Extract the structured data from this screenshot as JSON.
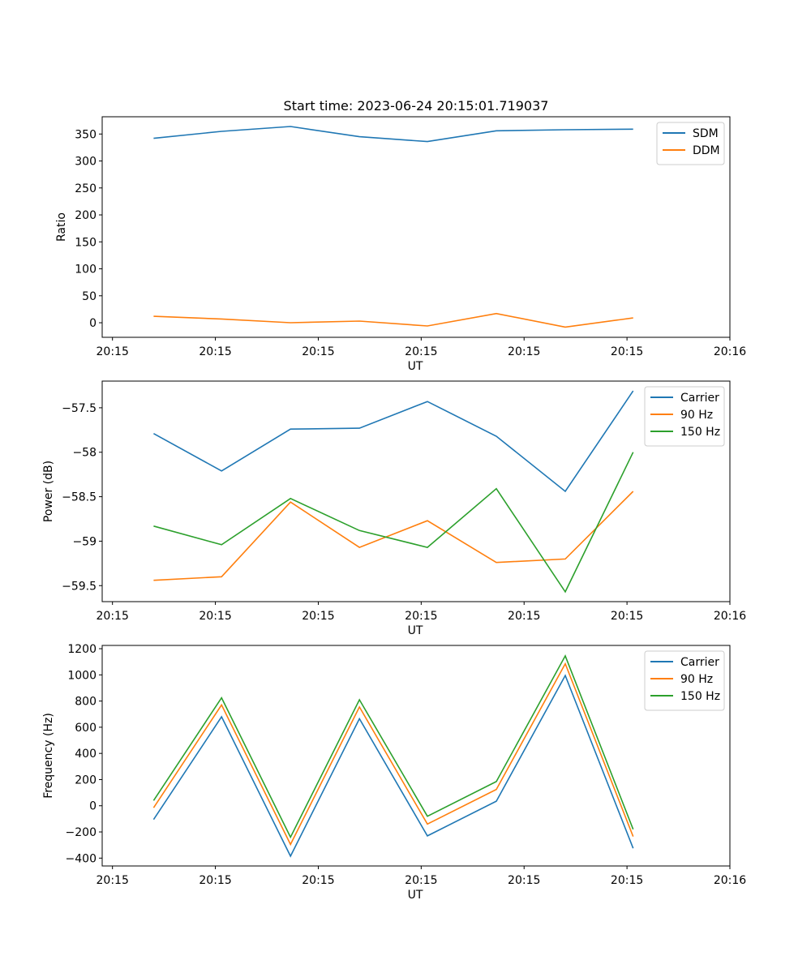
{
  "figure": {
    "title": "Start time: 2023-06-24 20:15:01.719037"
  },
  "chart_data": [
    {
      "type": "line",
      "title": "Start time: 2023-06-24 20:15:01.719037",
      "xlabel": "UT",
      "ylabel": "Ratio",
      "x_ticks": [
        "20:15",
        "20:15",
        "20:15",
        "20:15",
        "20:15",
        "20:15",
        "20:16"
      ],
      "xlim": [
        0,
        6.1
      ],
      "ylim": [
        -27,
        382
      ],
      "y_ticks": [
        0,
        50,
        100,
        150,
        200,
        250,
        300,
        350
      ],
      "x": [
        0.5,
        1.16,
        1.83,
        2.5,
        3.16,
        3.83,
        4.5,
        5.16
      ],
      "legend_position": "upper right",
      "grid": false,
      "series": [
        {
          "name": "SDM",
          "color": "#1f77b4",
          "values": [
            342,
            355,
            364,
            345,
            336,
            356,
            358,
            359
          ]
        },
        {
          "name": "DDM",
          "color": "#ff7f0e",
          "values": [
            12,
            7,
            0,
            3,
            -6,
            17,
            -8,
            9
          ]
        }
      ]
    },
    {
      "type": "line",
      "xlabel": "UT",
      "ylabel": "Power (dB)",
      "x_ticks": [
        "20:15",
        "20:15",
        "20:15",
        "20:15",
        "20:15",
        "20:15",
        "20:16"
      ],
      "xlim": [
        0,
        6.1
      ],
      "ylim": [
        -59.68,
        -57.2
      ],
      "y_ticks": [
        -59.5,
        -59.0,
        -58.5,
        -58.0,
        -57.5
      ],
      "x": [
        0.5,
        1.16,
        1.83,
        2.5,
        3.16,
        3.83,
        4.5,
        5.16
      ],
      "legend_position": "upper right",
      "grid": false,
      "series": [
        {
          "name": "Carrier",
          "color": "#1f77b4",
          "values": [
            -57.79,
            -58.21,
            -57.74,
            -57.73,
            -57.43,
            -57.82,
            -58.44,
            -57.31
          ]
        },
        {
          "name": "90 Hz",
          "color": "#ff7f0e",
          "values": [
            -59.44,
            -59.4,
            -58.56,
            -59.07,
            -58.77,
            -59.24,
            -59.2,
            -58.44
          ]
        },
        {
          "name": "150 Hz",
          "color": "#2ca02c",
          "values": [
            -58.83,
            -59.04,
            -58.52,
            -58.88,
            -59.07,
            -58.41,
            -59.57,
            -58.0
          ]
        }
      ]
    },
    {
      "type": "line",
      "xlabel": "UT",
      "ylabel": "Frequency (Hz)",
      "x_ticks": [
        "20:15",
        "20:15",
        "20:15",
        "20:15",
        "20:15",
        "20:15",
        "20:16"
      ],
      "xlim": [
        0,
        6.1
      ],
      "ylim": [
        -460,
        1225
      ],
      "y_ticks": [
        -400,
        -200,
        0,
        200,
        400,
        600,
        800,
        1000,
        1200
      ],
      "x": [
        0.5,
        1.16,
        1.83,
        2.5,
        3.16,
        3.83,
        4.5,
        5.16
      ],
      "legend_position": "upper right",
      "grid": false,
      "series": [
        {
          "name": "Carrier",
          "color": "#1f77b4",
          "values": [
            -105,
            680,
            -385,
            665,
            -230,
            35,
            995,
            -325
          ]
        },
        {
          "name": "90 Hz",
          "color": "#ff7f0e",
          "values": [
            -15,
            770,
            -295,
            755,
            -140,
            125,
            1085,
            -235
          ]
        },
        {
          "name": "150 Hz",
          "color": "#2ca02c",
          "values": [
            40,
            825,
            -240,
            810,
            -80,
            185,
            1145,
            -180
          ]
        }
      ]
    }
  ]
}
